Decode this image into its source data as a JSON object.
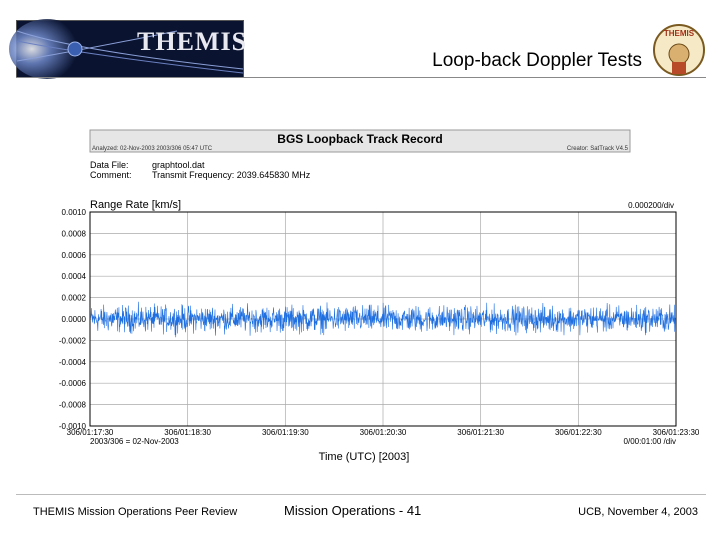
{
  "slide": {
    "title": "Loop-back Doppler Tests",
    "logo_text": "THEMIS",
    "mascot_text": "THEMIS",
    "footer_left": "THEMIS Mission Operations Peer Review",
    "footer_center": "Mission Operations - 41",
    "footer_right": "UCB, November 4, 2003"
  },
  "chart_data": {
    "type": "line",
    "title": "BGS Loopback Track Record",
    "analyzed": "Analyzed: 02-Nov-2003 2003/306 05:47 UTC",
    "creator": "Creator: SatTrack V4.5",
    "data_file_label": "Data File:",
    "data_file": "graphtool.dat",
    "comment_label": "Comment:",
    "comment": "Transmit Frequency: 2039.645830 MHz",
    "ylabel": "Range Rate [km/s]",
    "y_scale": "0.000200/div",
    "ylim": [
      -0.001,
      0.001
    ],
    "y_ticks": [
      "0.0010",
      "0.0008",
      "0.0006",
      "0.0004",
      "0.0002",
      "0.0000",
      "-0.0002",
      "-0.0004",
      "-0.0006",
      "-0.0008",
      "-0.0010"
    ],
    "x_ticks": [
      "306/01:17:30",
      "306/01:18:30",
      "306/01:19:30",
      "306/01:20:30",
      "306/01:21:30",
      "306/01:22:30",
      "306/01:23:30"
    ],
    "x_start_label": "2003/306 = 02-Nov-2003",
    "x_scale": "0/00:01:00 /div",
    "xlabel": "Time (UTC) [2003]",
    "grid": true,
    "color": "#1f6fe0",
    "series": [
      {
        "values_range": [
          -0.00018,
          0.00018
        ],
        "mean": 0.0
      }
    ]
  }
}
